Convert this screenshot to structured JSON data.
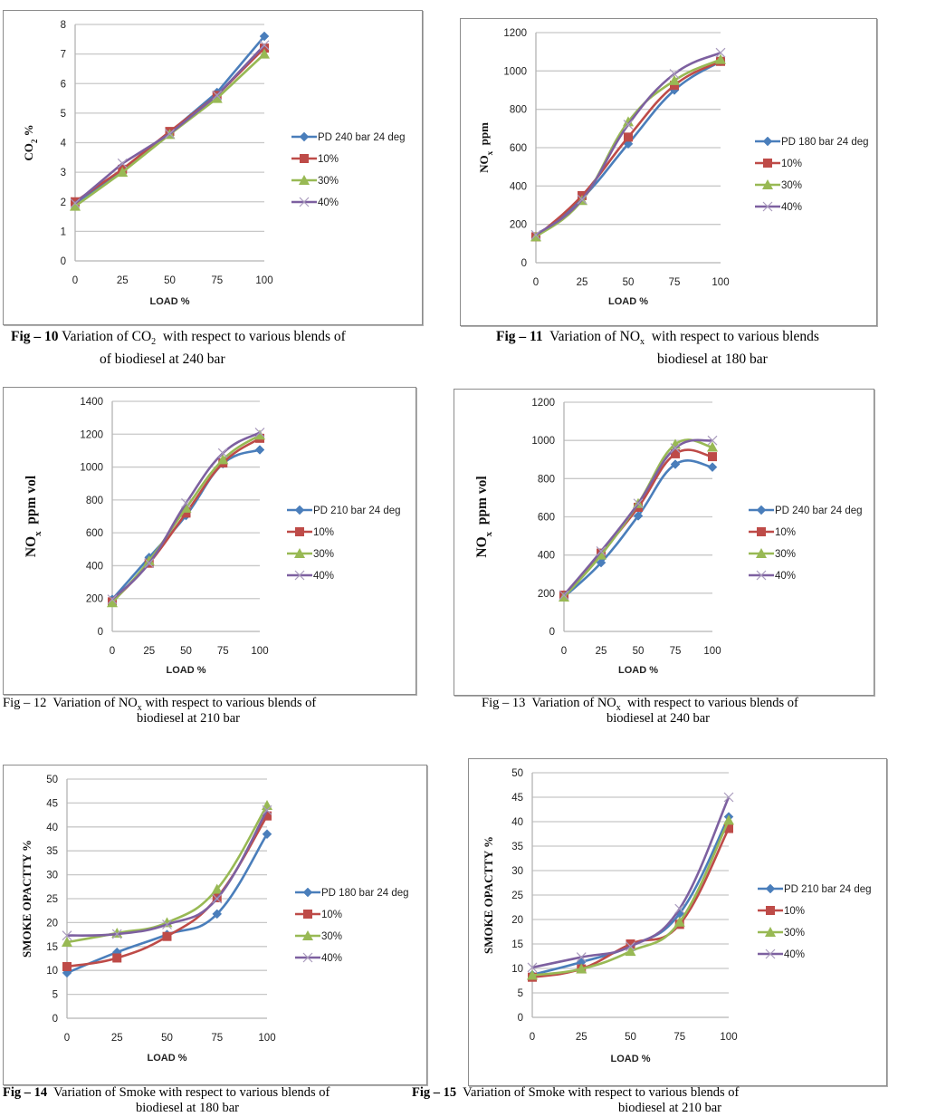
{
  "colors": {
    "series": [
      "#4a7ebb",
      "#be4b48",
      "#98b954",
      "#7d60a0"
    ],
    "grid": "#c8c8c8",
    "axis": "#b4b4b4",
    "frame": "#8c8c8c",
    "text": "#000000"
  },
  "figures": [
    {
      "id": "fig10",
      "caption": {
        "fig_label": "Fig – 10",
        "line1_pre": "Variation of CO",
        "line1_sub": "2",
        "line1_post": "  with respect to various blends of",
        "line2": "of biodiesel at 240 bar"
      }
    },
    {
      "id": "fig11",
      "caption": {
        "fig_label": "Fig – 11",
        "line1_pre": "Variation of NO",
        "line1_sub": "x",
        "line1_post": "  with respect to various blends",
        "line2": "biodiesel at 180 bar"
      }
    },
    {
      "id": "fig12",
      "caption": {
        "fig_label": "Fig – 12",
        "line1_pre": "Variation of NO",
        "line1_sub": "x",
        "line1_post": " with respect to various blends of",
        "line2": "biodiesel at 210 bar"
      }
    },
    {
      "id": "fig13",
      "caption": {
        "fig_label": "Fig – 13",
        "line1_pre": "Variation of NO",
        "line1_sub": "x",
        "line1_post": "  with respect to various blends of",
        "line2": "biodiesel at 240 bar"
      }
    },
    {
      "id": "fig14",
      "caption": {
        "fig_label": "Fig – 14",
        "line1_pre": "Variation of Smoke with respect to various blends of",
        "line1_sub": "",
        "line1_post": "",
        "line2": "biodiesel at 180 bar"
      }
    },
    {
      "id": "fig15",
      "caption": {
        "fig_label": "Fig – 15",
        "line1_pre": "Variation of Smoke with respect to various blends of",
        "line1_sub": "",
        "line1_post": "",
        "line2": "biodiesel at 210 bar"
      }
    }
  ],
  "chart_data": [
    {
      "id": "fig10",
      "type": "line",
      "title": "",
      "xlabel": "LOAD %",
      "ylabel": "CO2 %",
      "ylabel_main": "CO",
      "ylabel_sub": "2",
      "ylabel_post": " %",
      "x": [
        0,
        25,
        50,
        75,
        100
      ],
      "x_ticks": [
        "0",
        "25",
        "50",
        "75",
        "100"
      ],
      "ylim": [
        0,
        8
      ],
      "y_ticks": [
        "0",
        "1",
        "2",
        "3",
        "4",
        "5",
        "6",
        "7",
        "8"
      ],
      "grid": true,
      "smooth": false,
      "legend_position": "right",
      "series": [
        {
          "name": "PD 240 bar 24 deg",
          "marker": "diamond",
          "values": [
            1.95,
            3.05,
            4.35,
            5.7,
            7.6
          ]
        },
        {
          "name": "10%",
          "marker": "square",
          "values": [
            2.0,
            3.1,
            4.38,
            5.6,
            7.2
          ]
        },
        {
          "name": "30%",
          "marker": "triangle",
          "values": [
            1.85,
            3.0,
            4.28,
            5.5,
            7.0
          ]
        },
        {
          "name": "40%",
          "marker": "x",
          "values": [
            1.95,
            3.3,
            4.3,
            5.6,
            7.3
          ]
        }
      ]
    },
    {
      "id": "fig11",
      "type": "line",
      "title": "",
      "xlabel": "LOAD %",
      "ylabel": "NOx ppm",
      "ylabel_main": "NO",
      "ylabel_sub": "x",
      "ylabel_post": "  ppm",
      "x": [
        0,
        25,
        50,
        75,
        100
      ],
      "x_ticks": [
        "0",
        "25",
        "50",
        "75",
        "100"
      ],
      "ylim": [
        0,
        1200
      ],
      "y_ticks": [
        "0",
        "200",
        "400",
        "600",
        "800",
        "1000",
        "1200"
      ],
      "grid": true,
      "smooth": true,
      "legend_position": "right",
      "series": [
        {
          "name": "PD 180 bar 24 deg",
          "marker": "diamond",
          "values": [
            135,
            335,
            620,
            900,
            1050
          ]
        },
        {
          "name": "10%",
          "marker": "square",
          "values": [
            135,
            350,
            655,
            925,
            1050
          ]
        },
        {
          "name": "30%",
          "marker": "triangle",
          "values": [
            135,
            325,
            735,
            950,
            1060
          ]
        },
        {
          "name": "40%",
          "marker": "x",
          "values": [
            145,
            330,
            720,
            985,
            1095
          ]
        }
      ]
    },
    {
      "id": "fig12",
      "type": "line",
      "title": "",
      "xlabel": "LOAD %",
      "ylabel": "NOx ppm vol",
      "ylabel_main": "NO",
      "ylabel_sub": "x",
      "ylabel_post": "  ppm vol",
      "x": [
        0,
        25,
        50,
        75,
        100
      ],
      "x_ticks": [
        "0",
        "25",
        "50",
        "75",
        "100"
      ],
      "ylim": [
        0,
        1400
      ],
      "y_ticks": [
        "0",
        "200",
        "400",
        "600",
        "800",
        "1000",
        "1200",
        "1400"
      ],
      "grid": true,
      "smooth": true,
      "legend_position": "right",
      "series": [
        {
          "name": "PD 210 bar 24 deg",
          "marker": "diamond",
          "values": [
            195,
            450,
            705,
            1020,
            1105
          ]
        },
        {
          "name": "10%",
          "marker": "square",
          "values": [
            180,
            415,
            720,
            1025,
            1175
          ]
        },
        {
          "name": "30%",
          "marker": "triangle",
          "values": [
            175,
            430,
            750,
            1045,
            1195
          ]
        },
        {
          "name": "40%",
          "marker": "x",
          "values": [
            195,
            415,
            780,
            1085,
            1210
          ]
        }
      ]
    },
    {
      "id": "fig13",
      "type": "line",
      "title": "",
      "xlabel": "LOAD %",
      "ylabel": "NOx ppm vol",
      "ylabel_main": "NO",
      "ylabel_sub": "x",
      "ylabel_post": "  ppm vol",
      "x": [
        0,
        25,
        50,
        75,
        100
      ],
      "x_ticks": [
        "0",
        "25",
        "50",
        "75",
        "100"
      ],
      "ylim": [
        0,
        1200
      ],
      "y_ticks": [
        "0",
        "200",
        "400",
        "600",
        "800",
        "1000",
        "1200"
      ],
      "grid": true,
      "smooth": true,
      "legend_position": "right",
      "series": [
        {
          "name": "PD 240 bar 24 deg",
          "marker": "diamond",
          "values": [
            180,
            360,
            605,
            875,
            860
          ]
        },
        {
          "name": "10%",
          "marker": "square",
          "values": [
            190,
            410,
            650,
            930,
            915
          ]
        },
        {
          "name": "30%",
          "marker": "triangle",
          "values": [
            180,
            400,
            670,
            980,
            965
          ]
        },
        {
          "name": "40%",
          "marker": "x",
          "values": [
            190,
            420,
            670,
            960,
            1000
          ]
        }
      ]
    },
    {
      "id": "fig14",
      "type": "line",
      "title": "",
      "xlabel": "LOAD %",
      "ylabel": "SMOKE OPACTTY %",
      "ylabel_main": "SMOKE OPACTTY %",
      "ylabel_sub": "",
      "ylabel_post": "",
      "x": [
        0,
        25,
        50,
        75,
        100
      ],
      "x_ticks": [
        "0",
        "25",
        "50",
        "75",
        "100"
      ],
      "ylim": [
        0,
        50
      ],
      "y_ticks": [
        "0",
        "5",
        "10",
        "15",
        "20",
        "25",
        "30",
        "35",
        "40",
        "45",
        "50"
      ],
      "grid": true,
      "smooth": true,
      "legend_position": "right",
      "series": [
        {
          "name": "PD 180 bar 24 deg",
          "marker": "diamond",
          "values": [
            9.5,
            13.8,
            17.5,
            21.8,
            38.5
          ]
        },
        {
          "name": "10%",
          "marker": "square",
          "values": [
            10.8,
            12.6,
            17.1,
            25.2,
            42.3
          ]
        },
        {
          "name": "30%",
          "marker": "triangle",
          "values": [
            15.9,
            17.8,
            20.0,
            27.0,
            44.5
          ]
        },
        {
          "name": "40%",
          "marker": "x",
          "values": [
            17.3,
            17.6,
            19.6,
            25.0,
            43.5
          ]
        }
      ]
    },
    {
      "id": "fig15",
      "type": "line",
      "title": "",
      "xlabel": "LOAD %",
      "ylabel": "SMOKE OPACTTY %",
      "ylabel_main": "SMOKE OPACTTY %",
      "ylabel_sub": "",
      "ylabel_post": "",
      "x": [
        0,
        25,
        50,
        75,
        100
      ],
      "x_ticks": [
        "0",
        "25",
        "50",
        "75",
        "100"
      ],
      "ylim": [
        0,
        50
      ],
      "y_ticks": [
        "0",
        "5",
        "10",
        "15",
        "20",
        "25",
        "30",
        "35",
        "40",
        "45",
        "50"
      ],
      "grid": true,
      "smooth": true,
      "legend_position": "right",
      "series": [
        {
          "name": "PD 210 bar 24 deg",
          "marker": "diamond",
          "values": [
            8.7,
            11.3,
            14.6,
            21.2,
            41.0
          ]
        },
        {
          "name": "10%",
          "marker": "square",
          "values": [
            8.2,
            9.9,
            15.0,
            19.0,
            38.6
          ]
        },
        {
          "name": "30%",
          "marker": "triangle",
          "values": [
            8.6,
            9.9,
            13.5,
            19.5,
            40.3
          ]
        },
        {
          "name": "40%",
          "marker": "x",
          "values": [
            10.2,
            12.3,
            14.5,
            22.2,
            45.0
          ]
        }
      ]
    }
  ]
}
